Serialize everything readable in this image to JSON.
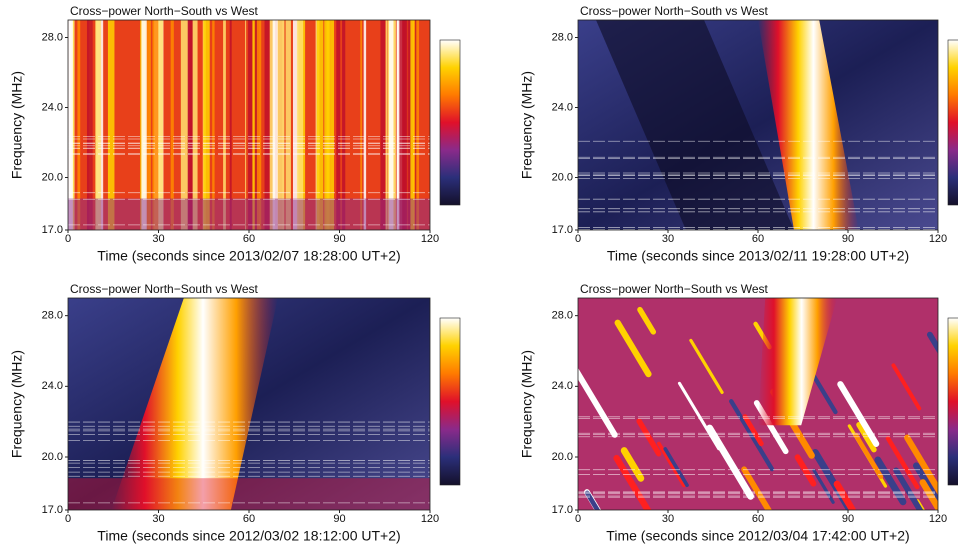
{
  "chart_data": [
    {
      "type": "spectrogram",
      "title": "Cross−power North−South vs West",
      "xlabel": "Time (seconds  since 2013/02/07 18:28:00 UT+2)",
      "ylabel": "Frequency (MHz)",
      "xlim": [
        0,
        120
      ],
      "xticks": [
        0,
        30,
        60,
        90,
        120
      ],
      "ylim": [
        17,
        29
      ],
      "yticks": [
        {
          "value": 17,
          "label": "17.0"
        },
        {
          "value": 20,
          "label": "20.0"
        },
        {
          "value": 24,
          "label": "24.0"
        },
        {
          "value": 28,
          "label": "28.0"
        }
      ],
      "colormap": [
        "#14102a",
        "#2b2f7a",
        "#8a2a8a",
        "#e0102a",
        "#ff7a00",
        "#ffd200",
        "#ffffff"
      ]
    },
    {
      "type": "spectrogram",
      "title": "Cross−power North−South vs West",
      "xlabel": "Time (seconds  since 2013/02/11 19:28:00 UT+2)",
      "ylabel": "Frequency (MHz)",
      "xlim": [
        0,
        120
      ],
      "xticks": [
        0,
        30,
        60,
        90,
        120
      ],
      "ylim": [
        17,
        29
      ],
      "yticks": [
        {
          "value": 17,
          "label": "17.0"
        },
        {
          "value": 20,
          "label": "20.0"
        },
        {
          "value": 24,
          "label": "24.0"
        },
        {
          "value": 28,
          "label": "28.0"
        }
      ],
      "colormap": [
        "#14102a",
        "#2b2f7a",
        "#8a2a8a",
        "#e0102a",
        "#ff7a00",
        "#ffd200",
        "#ffffff"
      ]
    },
    {
      "type": "spectrogram",
      "title": "Cross−power North−South vs West",
      "xlabel": "Time (seconds  since 2012/03/02 18:12:00 UT+2)",
      "ylabel": "Frequency (MHz)",
      "xlim": [
        0,
        120
      ],
      "xticks": [
        0,
        30,
        60,
        90,
        120
      ],
      "ylim": [
        17,
        29
      ],
      "yticks": [
        {
          "value": 17,
          "label": "17.0"
        },
        {
          "value": 20,
          "label": "20.0"
        },
        {
          "value": 24,
          "label": "24.0"
        },
        {
          "value": 28,
          "label": "28.0"
        }
      ],
      "colormap": [
        "#14102a",
        "#2b2f7a",
        "#8a2a8a",
        "#e0102a",
        "#ff7a00",
        "#ffd200",
        "#ffffff"
      ]
    },
    {
      "type": "spectrogram",
      "title": "Cross−power North−South vs West",
      "xlabel": "Time (seconds  since 2012/03/04 17:42:00 UT+2)",
      "ylabel": "Frequency (MHz)",
      "xlim": [
        0,
        120
      ],
      "xticks": [
        0,
        30,
        60,
        90,
        120
      ],
      "ylim": [
        17,
        29
      ],
      "yticks": [
        {
          "value": 17,
          "label": "17.0"
        },
        {
          "value": 20,
          "label": "20.0"
        },
        {
          "value": 24,
          "label": "24.0"
        },
        {
          "value": 28,
          "label": "28.0"
        }
      ],
      "colormap": [
        "#14102a",
        "#2b2f7a",
        "#8a2a8a",
        "#e0102a",
        "#ff7a00",
        "#ffd200",
        "#ffffff"
      ]
    }
  ]
}
